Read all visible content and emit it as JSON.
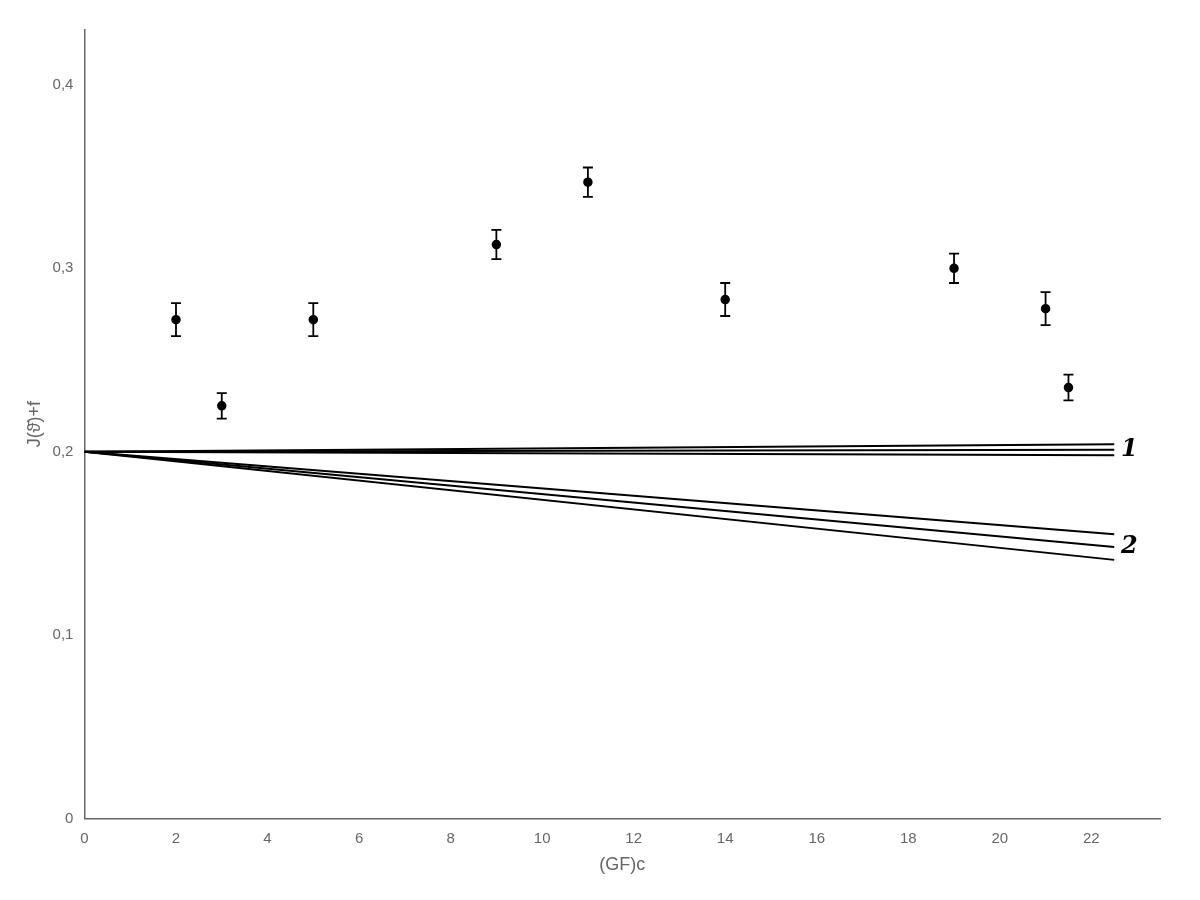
{
  "chart_data": {
    "type": "scatter",
    "xlabel": "(GF)c",
    "ylabel": "J(ϑ̄)+f",
    "xlim": [
      0,
      23.5
    ],
    "ylim": [
      0.0,
      0.43
    ],
    "xticks": [
      0,
      2,
      4,
      6,
      8,
      10,
      12,
      14,
      16,
      18,
      20,
      22
    ],
    "yticks": [
      0,
      {
        "value": 0.1,
        "label": "0,1"
      },
      {
        "value": 0.2,
        "label": "0,2"
      },
      {
        "value": 0.3,
        "label": "0,3"
      },
      {
        "value": 0.4,
        "label": "0,4"
      }
    ],
    "grid": false,
    "series": [
      {
        "type": "line",
        "color": "#000000",
        "x": [
          0.0,
          22.5
        ],
        "values": [
          0.2,
          0.204
        ]
      },
      {
        "type": "line",
        "color": "#000000",
        "x": [
          0.0,
          22.5
        ],
        "values": [
          0.2,
          0.201
        ]
      },
      {
        "type": "line",
        "color": "#000000",
        "x": [
          0.0,
          22.5
        ],
        "values": [
          0.2,
          0.198
        ]
      },
      {
        "type": "line",
        "color": "#000000",
        "x": [
          0.0,
          22.5
        ],
        "values": [
          0.2,
          0.155
        ]
      },
      {
        "type": "line",
        "color": "#000000",
        "x": [
          0.0,
          22.5
        ],
        "values": [
          0.2,
          0.148
        ]
      },
      {
        "type": "line",
        "color": "#000000",
        "x": [
          0.0,
          22.5
        ],
        "values": [
          0.2,
          0.141
        ]
      },
      {
        "type": "scatter",
        "color": "#000000",
        "marker": "circle",
        "x": [
          2.0,
          3.0,
          5.0,
          9.0,
          11.0,
          14.0,
          19.0,
          21.0,
          21.5
        ],
        "values": [
          0.272,
          0.225,
          0.272,
          0.313,
          0.347,
          0.283,
          0.3,
          0.278,
          0.235
        ],
        "yerr": [
          0.009,
          0.007,
          0.009,
          0.008,
          0.008,
          0.009,
          0.008,
          0.009,
          0.007
        ]
      }
    ],
    "annotations": [
      {
        "text": "1",
        "x": 22.65,
        "y": 0.201
      },
      {
        "text": "2",
        "x": 22.65,
        "y": 0.148
      }
    ]
  }
}
